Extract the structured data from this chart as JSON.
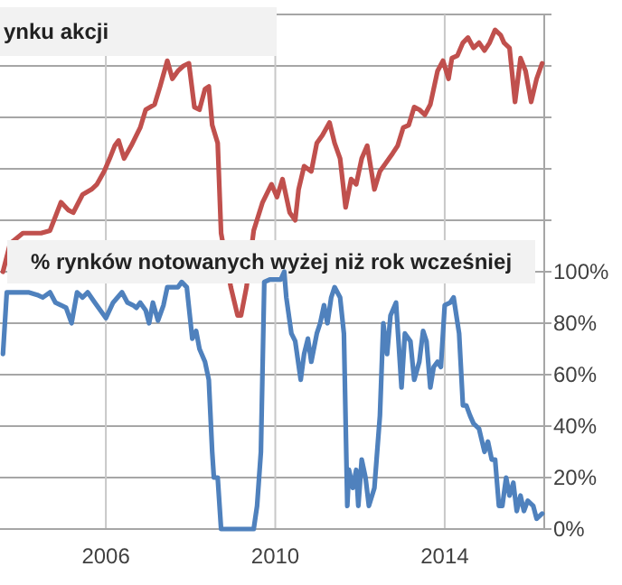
{
  "chart_data": {
    "type": "line",
    "annotations": [
      "ynku akcji",
      "% rynków notowanych wyżej niż rok wcześniej"
    ],
    "xlim": [
      2003.5,
      2016.35
    ],
    "xticks": [
      2006,
      2010,
      2014
    ],
    "ylim": [
      0,
      200
    ],
    "yticks": [
      {
        "value": 0,
        "label": "0%"
      },
      {
        "value": 20,
        "label": "20%"
      },
      {
        "value": 40,
        "label": "40%"
      },
      {
        "value": 60,
        "label": "60%"
      },
      {
        "value": 80,
        "label": "80%"
      },
      {
        "value": 100,
        "label": "100%"
      },
      {
        "value": 120,
        "label": null
      },
      {
        "value": 140,
        "label": null
      },
      {
        "value": 160,
        "label": null
      },
      {
        "value": 180,
        "label": null
      },
      {
        "value": 200,
        "label": null
      }
    ],
    "grid": true,
    "line_style": "solid",
    "marker": "none",
    "series": [
      {
        "color": "#c0504d",
        "x": [
          2003.57,
          2003.74,
          2004.04,
          2004.47,
          2004.68,
          2004.94,
          2005.11,
          2005.23,
          2005.45,
          2005.66,
          2005.79,
          2005.96,
          2006.09,
          2006.21,
          2006.3,
          2006.43,
          2006.6,
          2006.81,
          2006.94,
          2007.15,
          2007.28,
          2007.45,
          2007.57,
          2007.7,
          2007.83,
          2007.96,
          2008.09,
          2008.21,
          2008.34,
          2008.43,
          2008.51,
          2008.64,
          2008.72,
          2008.95,
          2009.11,
          2009.19,
          2009.32,
          2009.49,
          2009.7,
          2009.91,
          2010.04,
          2010.17,
          2010.34,
          2010.47,
          2010.55,
          2010.68,
          2010.85,
          2010.98,
          2011.11,
          2011.28,
          2011.4,
          2011.53,
          2011.66,
          2011.79,
          2011.91,
          2012.04,
          2012.17,
          2012.34,
          2012.47,
          2012.6,
          2012.77,
          2012.89,
          2013.02,
          2013.15,
          2013.28,
          2013.4,
          2013.53,
          2013.66,
          2013.83,
          2013.96,
          2014.09,
          2014.17,
          2014.3,
          2014.43,
          2014.55,
          2014.68,
          2014.81,
          2014.94,
          2015.06,
          2015.19,
          2015.32,
          2015.4,
          2015.53,
          2015.66,
          2015.79,
          2015.91,
          2016.04,
          2016.17,
          2016.3
        ],
        "values": [
          100,
          111,
          115,
          115,
          116,
          127,
          124,
          123,
          130,
          132,
          134,
          139,
          144,
          149,
          151,
          144,
          149,
          156,
          163,
          165,
          172,
          182,
          175,
          178,
          180,
          181,
          164,
          163,
          171,
          172,
          157,
          150,
          115,
          94,
          83,
          83,
          94,
          116,
          127,
          134,
          129,
          136,
          123,
          120,
          132,
          141,
          139,
          150,
          153,
          158,
          150,
          144,
          125,
          136,
          134,
          144,
          149,
          132,
          139,
          142,
          146,
          149,
          156,
          157,
          164,
          163,
          161,
          165,
          178,
          182,
          175,
          183,
          184,
          189,
          191,
          187,
          189,
          186,
          189,
          194,
          192,
          189,
          187,
          166,
          183,
          178,
          166,
          175,
          181
        ]
      },
      {
        "color": "#4f81bd",
        "x": [
          2003.57,
          2003.66,
          2003.74,
          2004.17,
          2004.38,
          2004.51,
          2004.68,
          2004.81,
          2004.94,
          2005.06,
          2005.19,
          2005.32,
          2005.45,
          2005.57,
          2005.74,
          2005.87,
          2006.0,
          2006.17,
          2006.38,
          2006.51,
          2006.64,
          2006.72,
          2006.81,
          2006.94,
          2007.02,
          2007.11,
          2007.23,
          2007.36,
          2007.45,
          2007.57,
          2007.7,
          2007.79,
          2007.91,
          2008.04,
          2008.13,
          2008.21,
          2008.34,
          2008.43,
          2008.51,
          2008.55,
          2008.64,
          2008.72,
          2009.49,
          2009.57,
          2009.66,
          2009.74,
          2009.87,
          2010.13,
          2010.21,
          2010.26,
          2010.38,
          2010.47,
          2010.6,
          2010.68,
          2010.77,
          2010.85,
          2010.98,
          2011.06,
          2011.15,
          2011.23,
          2011.32,
          2011.4,
          2011.53,
          2011.62,
          2011.7,
          2011.74,
          2011.83,
          2011.91,
          2011.96,
          2012.04,
          2012.13,
          2012.21,
          2012.34,
          2012.47,
          2012.55,
          2012.64,
          2012.72,
          2012.85,
          2012.98,
          2013.06,
          2013.19,
          2013.28,
          2013.4,
          2013.49,
          2013.57,
          2013.66,
          2013.74,
          2013.83,
          2013.91,
          2014.0,
          2014.13,
          2014.21,
          2014.34,
          2014.43,
          2014.51,
          2014.6,
          2014.68,
          2014.81,
          2014.94,
          2015.02,
          2015.11,
          2015.19,
          2015.28,
          2015.36,
          2015.45,
          2015.53,
          2015.62,
          2015.7,
          2015.79,
          2015.87,
          2015.96,
          2016.09,
          2016.17,
          2016.3
        ],
        "values": [
          68,
          92,
          92,
          92,
          91,
          90,
          92,
          88,
          87,
          86,
          80,
          92,
          90,
          92,
          88,
          85,
          82,
          88,
          92,
          88,
          87,
          86,
          88,
          85,
          80,
          88,
          81,
          87,
          94,
          94,
          94,
          96,
          94,
          74,
          77,
          70,
          65,
          58,
          30,
          20,
          20,
          0,
          0,
          9,
          30,
          96,
          97,
          97,
          100,
          90,
          76,
          73,
          58,
          68,
          74,
          65,
          76,
          80,
          87,
          80,
          90,
          94,
          90,
          76,
          9,
          23,
          16,
          23,
          9,
          27,
          20,
          9,
          16,
          44,
          80,
          68,
          83,
          88,
          55,
          76,
          73,
          58,
          65,
          77,
          73,
          55,
          63,
          65,
          63,
          87,
          88,
          90,
          76,
          48,
          48,
          44,
          41,
          39,
          30,
          34,
          27,
          27,
          9,
          9,
          20,
          13,
          18,
          7,
          13,
          7,
          11,
          9,
          4,
          6
        ]
      }
    ]
  }
}
